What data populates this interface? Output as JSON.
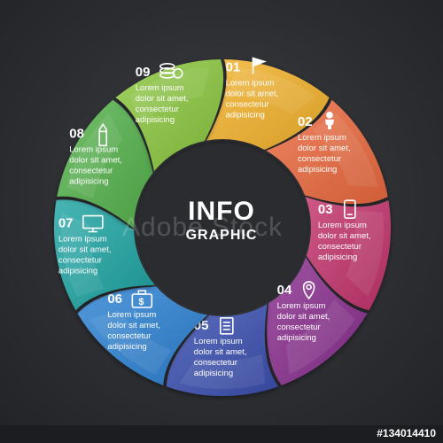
{
  "title": {
    "main": "INFO",
    "sub": "GRAPHIC"
  },
  "watermark": "Adobe Stock",
  "stock_id": "#134014410",
  "segments": [
    {
      "number": "01",
      "icon": "flag-icon",
      "color": "#f3b22b",
      "lines": [
        "Lorem ipsum",
        "dolor sit amet,",
        "consectetur",
        "adipisicing"
      ]
    },
    {
      "number": "02",
      "icon": "person-icon",
      "color": "#eb6a3f",
      "lines": [
        "Lorem ipsum",
        "dolor sit amet,",
        "consectetur",
        "adipisicing"
      ]
    },
    {
      "number": "03",
      "icon": "smartphone-icon",
      "color": "#c2336c",
      "lines": [
        "Lorem ipsum",
        "dolor sit amet,",
        "consectetur",
        "adipisicing"
      ]
    },
    {
      "number": "04",
      "icon": "map-pin-icon",
      "color": "#8a2f8e",
      "lines": [
        "Lorem ipsum",
        "dolor sit amet,",
        "consectetur",
        "adipisicing"
      ]
    },
    {
      "number": "05",
      "icon": "notepad-icon",
      "color": "#3b4fb0",
      "lines": [
        "Lorem ipsum",
        "dolor sit amet,",
        "consectetur",
        "adipisicing"
      ]
    },
    {
      "number": "06",
      "icon": "briefcase-dollar-icon",
      "color": "#2d82d3",
      "lines": [
        "Lorem ipsum",
        "dolor sit amet,",
        "consectetur",
        "adipisicing"
      ]
    },
    {
      "number": "07",
      "icon": "monitor-icon",
      "color": "#1fa5a3",
      "lines": [
        "Lorem ipsum",
        "dolor sit amet,",
        "consectetur",
        "adipisicing"
      ]
    },
    {
      "number": "08",
      "icon": "pencil-icon",
      "color": "#55b24d",
      "lines": [
        "Lorem ipsum",
        "dolor sit amet,",
        "consectetur",
        "adipisicing"
      ]
    },
    {
      "number": "09",
      "icon": "coins-icon",
      "color": "#8bc73f",
      "lines": [
        "Lorem ipsum",
        "dolor sit amet,",
        "consectetur",
        "adipisicing"
      ]
    }
  ]
}
